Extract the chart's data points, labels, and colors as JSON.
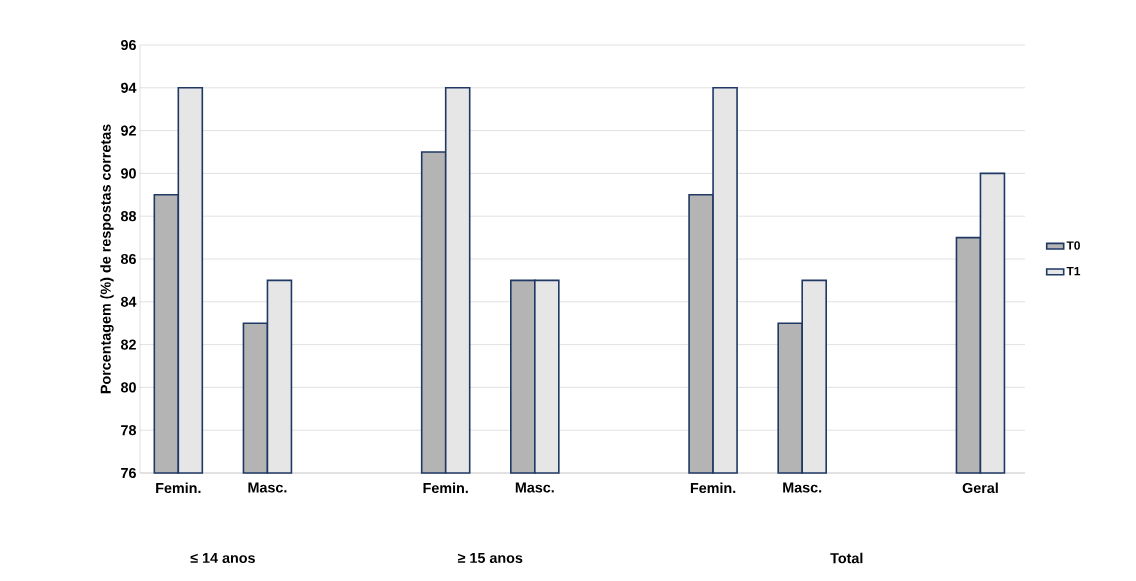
{
  "chart_data": {
    "type": "bar",
    "ylabel": "Porcentagem (%) de respostas corretas",
    "categories": [
      "Femin.",
      "Masc.",
      null,
      "Femin.",
      "Masc.",
      null,
      "Femin.",
      "Masc.",
      null,
      "Geral"
    ],
    "series": [
      {
        "name": "T0",
        "color": "#b4b4b4",
        "values": [
          89,
          83,
          null,
          91,
          85,
          null,
          89,
          83,
          null,
          87
        ]
      },
      {
        "name": "T1",
        "color": "#e6e6e6",
        "values": [
          94,
          85,
          null,
          94,
          85,
          null,
          94,
          85,
          null,
          90
        ]
      }
    ],
    "ylim": [
      76,
      96
    ],
    "yticks": [
      76,
      78,
      80,
      82,
      84,
      86,
      88,
      90,
      92,
      94,
      96
    ],
    "grid": "y",
    "legend": "right",
    "annotations": [
      "≤ 14 anos",
      "≥ 15 anos",
      "Total"
    ]
  }
}
